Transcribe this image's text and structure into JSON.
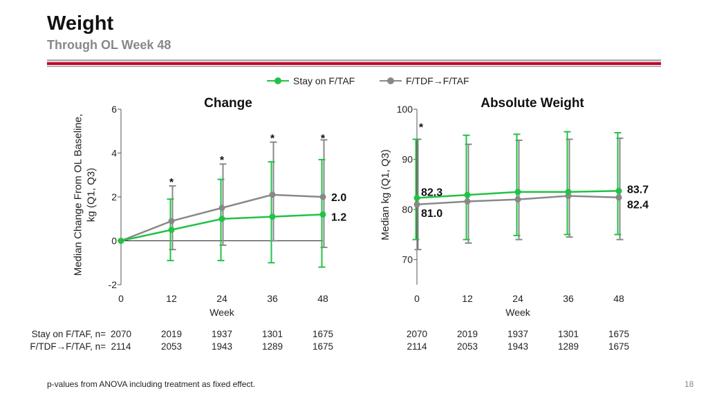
{
  "slide": {
    "title": "Weight",
    "subtitle": "Through OL Week 48",
    "footnote": "p-values from ANOVA including treatment as fixed effect.",
    "page_number": "18"
  },
  "legend": [
    {
      "label": "Stay on F/TAF",
      "color": "#22c244"
    },
    {
      "label": "F/TDF→F/TAF",
      "color": "#888888"
    }
  ],
  "n_table": {
    "row_labels": [
      "Stay on F/TAF, n=",
      "F/TDF→F/TAF, n="
    ],
    "change": [
      [
        "2070",
        "2019",
        "1937",
        "1301",
        "1675"
      ],
      [
        "2114",
        "2053",
        "1943",
        "1289",
        "1675"
      ]
    ],
    "absolute": [
      [
        "2070",
        "2019",
        "1937",
        "1301",
        "1675"
      ],
      [
        "2114",
        "2053",
        "1943",
        "1289",
        "1675"
      ]
    ]
  },
  "chart_data": [
    {
      "type": "line",
      "title": "Change",
      "xlabel": "Week",
      "ylabel_lines": [
        "Median Change From OL Baseline,",
        "kg (Q1, Q3)"
      ],
      "x": [
        0,
        12,
        24,
        36,
        48
      ],
      "xticks": [
        "0",
        "12",
        "24",
        "36",
        "48"
      ],
      "yticks": [
        -2,
        0,
        2,
        4,
        6
      ],
      "ylim": [
        -2,
        6
      ],
      "zero_line": true,
      "significance_marks": [
        {
          "x": 12,
          "y": 2.7,
          "label": "*"
        },
        {
          "x": 24,
          "y": 3.7,
          "label": "*"
        },
        {
          "x": 36,
          "y": 4.7,
          "label": "*"
        },
        {
          "x": 48,
          "y": 4.7,
          "label": "*"
        }
      ],
      "series": [
        {
          "name": "F/TDF→F/TAF",
          "color": "#888888",
          "values": [
            0,
            0.9,
            1.5,
            2.1,
            2.0
          ],
          "q1": [
            0,
            -0.4,
            -0.2,
            0.0,
            -0.3
          ],
          "q3": [
            0,
            2.5,
            3.5,
            4.5,
            4.6
          ]
        },
        {
          "name": "Stay on F/TAF",
          "color": "#22c244",
          "values": [
            0,
            0.5,
            1.0,
            1.1,
            1.2
          ],
          "q1": [
            0,
            -0.9,
            -0.9,
            -1.0,
            -1.2
          ],
          "q3": [
            0,
            1.9,
            2.8,
            3.6,
            3.7
          ]
        }
      ],
      "annotations": [
        {
          "text": "2.0",
          "x": 48,
          "y": 2.0
        },
        {
          "text": "1.2",
          "x": 48,
          "y": 1.2
        }
      ]
    },
    {
      "type": "line",
      "title": "Absolute Weight",
      "xlabel": "Week",
      "ylabel_lines": [
        "Median kg (Q1, Q3)"
      ],
      "x": [
        0,
        12,
        24,
        36,
        48
      ],
      "xticks": [
        "0",
        "12",
        "24",
        "36",
        "48"
      ],
      "yticks": [
        70,
        80,
        90,
        100
      ],
      "ylim": [
        65,
        100
      ],
      "zero_line": false,
      "significance_marks": [
        {
          "x": 0,
          "y": 96.5,
          "label": "*"
        }
      ],
      "series": [
        {
          "name": "F/TDF→F/TAF",
          "color": "#888888",
          "values": [
            81.0,
            81.6,
            82.0,
            82.7,
            82.4
          ],
          "q1": [
            72.0,
            73.3,
            74.0,
            74.5,
            74.0
          ],
          "q3": [
            94.0,
            93.0,
            93.8,
            94.0,
            94.2
          ]
        },
        {
          "name": "Stay on F/TAF",
          "color": "#22c244",
          "values": [
            82.3,
            82.9,
            83.5,
            83.5,
            83.7
          ],
          "q1": [
            74.0,
            74.0,
            74.8,
            75.0,
            75.0
          ],
          "q3": [
            94.0,
            94.8,
            95.0,
            95.5,
            95.3
          ]
        }
      ],
      "annotations": [
        {
          "text": "82.3",
          "x": 0,
          "y": 82.3
        },
        {
          "text": "81.0",
          "x": 0,
          "y": 81.0
        },
        {
          "text": "83.7",
          "x": 48,
          "y": 83.7
        },
        {
          "text": "82.4",
          "x": 48,
          "y": 82.4
        }
      ]
    }
  ]
}
